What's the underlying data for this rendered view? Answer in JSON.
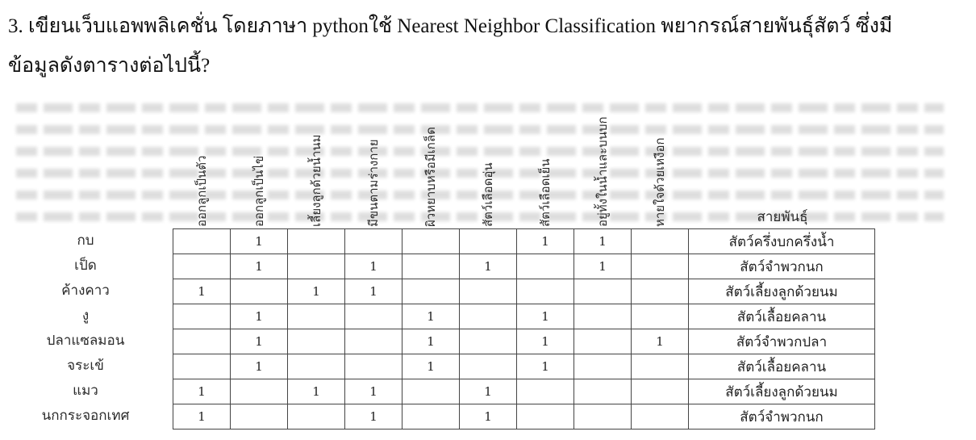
{
  "question": {
    "line1": "3. เขียนเว็บแอพพลิเคชั่น โดยภาษา pythonใช้ Nearest Neighbor Classification พยากรณ์สายพันธุ์สัตว์ ซึ่งมี",
    "line2": "ข้อมูลดังตารางต่อไปนี้?"
  },
  "table": {
    "columns": [
      "ออกลูกเป็นตัว",
      "ออกลูกเป็นไข่",
      "เลี้ยงลูกด้วยน้ำนม",
      "มีขนตามร่างกาย",
      "ผิวหยาบหรือมีเกล็ด",
      "สัตว์เลือดอุ่น",
      "สัตว์เลือดเย็น",
      "อยู่ทั้งในน้ำและบนบก",
      "หายใจด้วยเหงือก"
    ],
    "class_header": "สายพันธุ์",
    "rows": [
      {
        "name": "กบ",
        "cells": [
          "",
          "1",
          "",
          "",
          "",
          "",
          "1",
          "1",
          ""
        ],
        "class": "สัตว์ครึ่งบกครึ่งน้ำ"
      },
      {
        "name": "เป็ด",
        "cells": [
          "",
          "1",
          "",
          "1",
          "",
          "1",
          "",
          "1",
          ""
        ],
        "class": "สัตว์จำพวกนก"
      },
      {
        "name": "ค้างคาว",
        "cells": [
          "1",
          "",
          "1",
          "1",
          "",
          "",
          "",
          "",
          ""
        ],
        "class": "สัตว์เลี้ยงลูกด้วยนม"
      },
      {
        "name": "งู",
        "cells": [
          "",
          "1",
          "",
          "",
          "1",
          "",
          "1",
          "",
          ""
        ],
        "class": "สัตว์เลื้อยคลาน"
      },
      {
        "name": "ปลาแซลมอน",
        "cells": [
          "",
          "1",
          "",
          "",
          "1",
          "",
          "1",
          "",
          "1"
        ],
        "class": "สัตว์จำพวกปลา"
      },
      {
        "name": "จระเข้",
        "cells": [
          "",
          "1",
          "",
          "",
          "1",
          "",
          "1",
          "",
          ""
        ],
        "class": "สัตว์เลื้อยคลาน"
      },
      {
        "name": "แมว",
        "cells": [
          "1",
          "",
          "1",
          "1",
          "",
          "1",
          "",
          "",
          ""
        ],
        "class": "สัตว์เลี้ยงลูกด้วยนม"
      },
      {
        "name": "นกกระจอกเทศ",
        "cells": [
          "1",
          "",
          "",
          "1",
          "",
          "1",
          "",
          "",
          ""
        ],
        "class": "สัตว์จำพวกนก"
      }
    ]
  }
}
